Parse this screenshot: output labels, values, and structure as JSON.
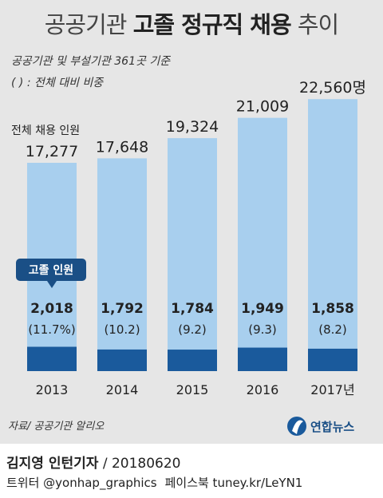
{
  "header": {
    "title_light": "공공기관",
    "title_bold": "고졸 정규직 채용",
    "title_light2": "추이",
    "subtitle_1": "공공기관 및 부설기관 361곳 기준",
    "subtitle_2": "( ) : 전체 대비 비중"
  },
  "chart_data": {
    "type": "bar",
    "categories": [
      "2013",
      "2014",
      "2015",
      "2016",
      "2017년"
    ],
    "series": [
      {
        "name": "전체 채용 인원",
        "values": [
          17277,
          17648,
          19324,
          21009,
          22560
        ],
        "labels": [
          "17,277",
          "17,648",
          "19,324",
          "21,009",
          "22,560명"
        ],
        "color": "#a8cfee"
      },
      {
        "name": "고졸 인원",
        "values": [
          2018,
          1792,
          1784,
          1949,
          1858
        ],
        "labels": [
          "2,018",
          "1,792",
          "1,784",
          "1,949",
          "1,858"
        ],
        "share_labels": [
          "(11.7%)",
          "(10.2)",
          "(9.2)",
          "(9.3)",
          "(8.2)"
        ],
        "color": "#1a5a9c"
      }
    ],
    "ylim": [
      0,
      23500
    ]
  },
  "source": "자료/ 공공기관 알리오",
  "logo_text": "연합뉴스",
  "footer": {
    "author": "김지영 인턴기자",
    "date": "/ 20180620",
    "twitter": "트위터 @yonhap_graphics",
    "facebook": "페이스북 tuney.kr/LeYN1"
  },
  "colors": {
    "panel": "#e6e6e6",
    "total_bar": "#a8cfee",
    "highschool_bar": "#1a5a9c",
    "callout": "#1a4f86"
  }
}
